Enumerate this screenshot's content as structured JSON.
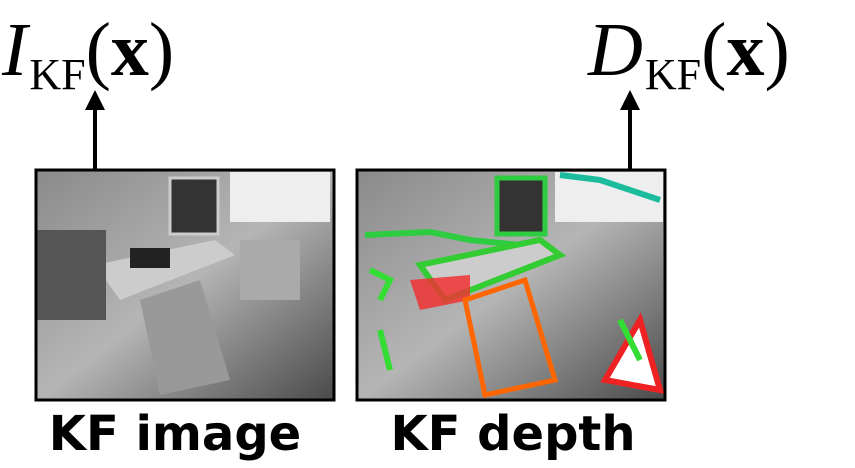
{
  "inputs": [
    {
      "symbol": "I",
      "subscript": "KF",
      "open_paren": "(",
      "argument": "x",
      "close_paren": ")",
      "caption": "KF image"
    },
    {
      "symbol": "D",
      "subscript": "KF",
      "open_paren": "(",
      "argument": "x",
      "close_paren": ")",
      "caption": "KF depth"
    }
  ]
}
